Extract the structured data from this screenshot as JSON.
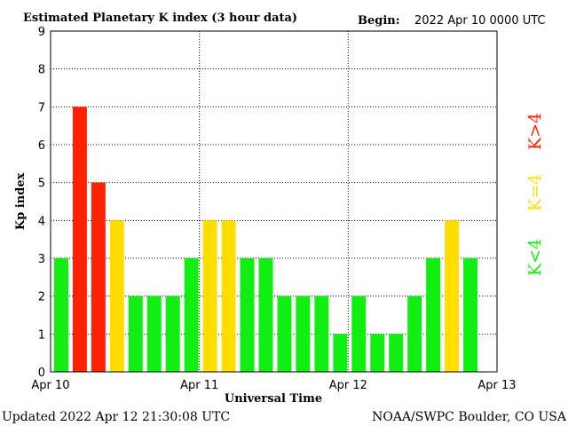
{
  "chart_data": {
    "type": "bar",
    "title": "Estimated Planetary K index (3 hour data)",
    "begin_label": "Begin:",
    "begin_value": "2022 Apr 10 0000 UTC",
    "xlabel": "Universal Time",
    "ylabel": "Kp index",
    "ylim": [
      0,
      9
    ],
    "yticks": [
      "0",
      "1",
      "2",
      "3",
      "4",
      "5",
      "6",
      "7",
      "8",
      "9"
    ],
    "xtick_labels": [
      "Apr 10",
      "Apr 11",
      "Apr 12",
      "Apr 13"
    ],
    "grid": true,
    "series": [
      {
        "values": [
          3,
          7,
          5,
          4,
          2,
          2,
          2,
          3,
          4,
          4,
          3,
          3,
          2,
          2,
          2,
          1,
          2,
          1,
          1,
          2,
          3,
          4,
          3
        ]
      }
    ],
    "colors": {
      "low": "#11ee11",
      "mid": "#ffdd00",
      "high": "#ff2200"
    },
    "legend": {
      "low": "K<4",
      "mid": "K=4",
      "high": "K>4"
    },
    "updated": "Updated 2022 Apr 12 21:30:08 UTC",
    "source": "NOAA/SWPC Boulder, CO USA"
  }
}
